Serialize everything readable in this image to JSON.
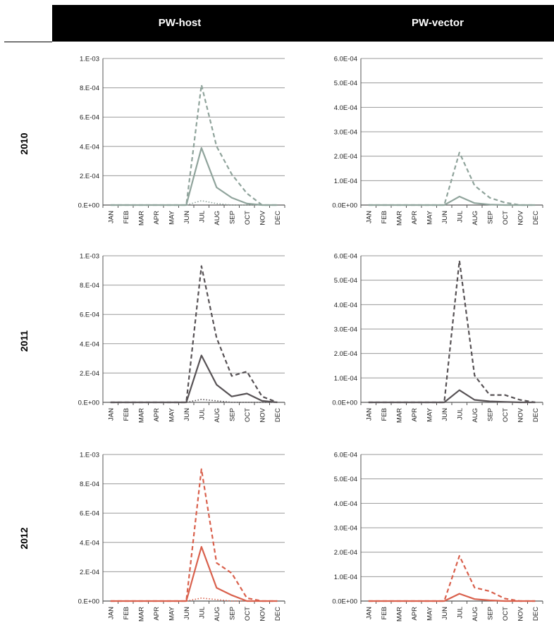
{
  "columns": [
    "PW-host",
    "PW-vector"
  ],
  "rows": [
    "2010",
    "2011",
    "2012"
  ],
  "colors": {
    "2010": "#8fa39b",
    "2011": "#575255",
    "2012": "#d9604c",
    "grid": "#9a9a9a",
    "axis": "#555555"
  },
  "chart_data": [
    {
      "type": "line",
      "panel": "PW-host / 2010",
      "categories": [
        "JAN",
        "FEB",
        "MAR",
        "APR",
        "MAY",
        "JUN",
        "JUL",
        "AUG",
        "SEP",
        "OCT",
        "NOV",
        "DEC"
      ],
      "y_ticks": [
        "0.E+00",
        "2.E-04",
        "4.E-04",
        "6.E-04",
        "8.E-04",
        "1.E-03"
      ],
      "ylim": [
        0,
        0.001
      ],
      "grid": true,
      "series": [
        {
          "style": "dashed",
          "values": [
            0,
            0,
            0,
            0,
            0,
            0,
            0.00082,
            0.0004,
            0.00021,
            8e-05,
            0,
            0
          ]
        },
        {
          "style": "solid",
          "values": [
            0,
            0,
            0,
            0,
            0,
            0,
            0.00039,
            0.00012,
            5e-05,
            1e-05,
            0,
            0
          ]
        },
        {
          "style": "dotted",
          "values": [
            0,
            0,
            0,
            0,
            0,
            0,
            3e-05,
            1e-05,
            0,
            0,
            0,
            0
          ]
        }
      ]
    },
    {
      "type": "line",
      "panel": "PW-vector / 2010",
      "categories": [
        "JAN",
        "FEB",
        "MAR",
        "APR",
        "MAY",
        "JUN",
        "JUL",
        "AUG",
        "SEP",
        "OCT",
        "NOV",
        "DEC"
      ],
      "y_ticks": [
        "0.0E+00",
        "1.0E-04",
        "2.0E-04",
        "3.0E-04",
        "4.0E-04",
        "5.0E-04",
        "6.0E-04"
      ],
      "ylim": [
        0,
        0.0006
      ],
      "grid": true,
      "series": [
        {
          "style": "dashed",
          "values": [
            0,
            0,
            0,
            0,
            0,
            0,
            0.000215,
            8e-05,
            3e-05,
            1e-05,
            0,
            0
          ]
        },
        {
          "style": "solid",
          "values": [
            0,
            0,
            0,
            0,
            0,
            0,
            3.5e-05,
            8e-06,
            2e-06,
            0,
            0,
            0
          ]
        }
      ]
    },
    {
      "type": "line",
      "panel": "PW-host / 2011",
      "categories": [
        "JAN",
        "FEB",
        "MAR",
        "APR",
        "MAY",
        "JUN",
        "JUL",
        "AUG",
        "SEP",
        "OCT",
        "NOV",
        "DEC"
      ],
      "y_ticks": [
        "0.E+00",
        "2.E-04",
        "4.E-04",
        "6.E-04",
        "8.E-04",
        "1.E-03"
      ],
      "ylim": [
        0,
        0.001
      ],
      "grid": true,
      "series": [
        {
          "style": "dashed",
          "values": [
            0,
            0,
            0,
            0,
            0,
            0,
            0.00093,
            0.00044,
            0.00018,
            0.00021,
            4e-05,
            0
          ]
        },
        {
          "style": "solid",
          "values": [
            0,
            0,
            0,
            0,
            0,
            0,
            0.00032,
            0.00012,
            4e-05,
            6e-05,
            1e-05,
            0
          ]
        },
        {
          "style": "dotted",
          "values": [
            0,
            0,
            0,
            0,
            0,
            0,
            2e-05,
            1e-05,
            0,
            0,
            0,
            0
          ]
        }
      ]
    },
    {
      "type": "line",
      "panel": "PW-vector / 2011",
      "categories": [
        "JAN",
        "FEB",
        "MAR",
        "APR",
        "MAY",
        "JUN",
        "JUL",
        "AUG",
        "SEP",
        "OCT",
        "NOV",
        "DEC"
      ],
      "y_ticks": [
        "0.0E+00",
        "1.0E-04",
        "2.0E-04",
        "3.0E-04",
        "4.0E-04",
        "5.0E-04",
        "6.0E-04"
      ],
      "ylim": [
        0,
        0.0006
      ],
      "grid": true,
      "series": [
        {
          "style": "dashed",
          "values": [
            0,
            0,
            0,
            0,
            0,
            0,
            0.00058,
            0.00011,
            3e-05,
            3e-05,
            1e-05,
            0
          ]
        },
        {
          "style": "solid",
          "values": [
            0,
            0,
            0,
            0,
            0,
            0,
            5e-05,
            1e-05,
            4e-06,
            2e-06,
            0,
            0
          ]
        }
      ]
    },
    {
      "type": "line",
      "panel": "PW-host / 2012",
      "categories": [
        "JAN",
        "FEB",
        "MAR",
        "APR",
        "MAY",
        "JUN",
        "JUL",
        "AUG",
        "SEP",
        "OCT",
        "NOV",
        "DEC"
      ],
      "y_ticks": [
        "0.E+00",
        "2.E-04",
        "4.E-04",
        "6.E-04",
        "8.E-04",
        "1.E-03"
      ],
      "ylim": [
        0,
        0.001
      ],
      "grid": true,
      "series": [
        {
          "style": "dashed",
          "values": [
            0,
            0,
            0,
            0,
            0,
            0,
            0.0009,
            0.00026,
            0.00019,
            2e-05,
            0,
            0
          ]
        },
        {
          "style": "solid",
          "values": [
            0,
            0,
            0,
            0,
            0,
            0,
            0.00037,
            9e-05,
            4e-05,
            0,
            0,
            0
          ]
        },
        {
          "style": "dotted",
          "values": [
            0,
            0,
            0,
            0,
            0,
            0,
            2e-05,
            1e-05,
            0,
            0,
            0,
            0
          ]
        }
      ]
    },
    {
      "type": "line",
      "panel": "PW-vector / 2012",
      "categories": [
        "JAN",
        "FEB",
        "MAR",
        "APR",
        "MAY",
        "JUN",
        "JUL",
        "AUG",
        "SEP",
        "OCT",
        "NOV",
        "DEC"
      ],
      "y_ticks": [
        "0.0E+00",
        "1.0E-04",
        "2.0E-04",
        "3.0E-04",
        "4.0E-04",
        "5.0E-04",
        "6.0E-04"
      ],
      "ylim": [
        0,
        0.0006
      ],
      "grid": true,
      "series": [
        {
          "style": "dashed",
          "values": [
            0,
            0,
            0,
            0,
            0,
            0,
            0.000185,
            5.5e-05,
            4e-05,
            1e-05,
            0,
            0
          ]
        },
        {
          "style": "solid",
          "values": [
            0,
            0,
            0,
            0,
            0,
            0,
            3e-05,
            8e-06,
            3e-06,
            0,
            0,
            0
          ]
        }
      ]
    }
  ]
}
